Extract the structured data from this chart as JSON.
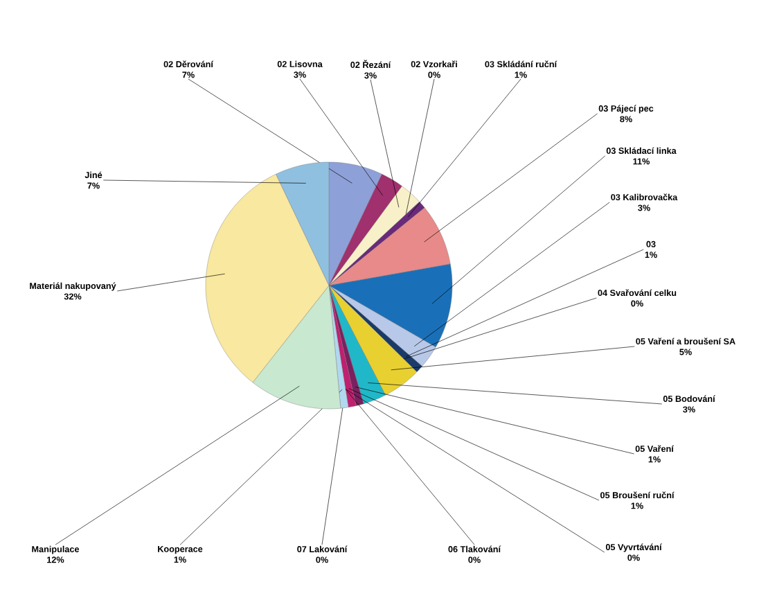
{
  "chart_data": {
    "type": "pie",
    "categories": [
      "02 Děrování",
      "02 Lisovna",
      "02 Řezání",
      "02 Vzorkaři",
      "03 Skládání ruční",
      "03 Pájecí pec",
      "03 Skládací linka",
      "03 Kalibrovačka",
      "03",
      "04 Svařování celku",
      "05 Vaření a broušení SA",
      "05 Bodování",
      "05 Vaření",
      "05 Broušení ruční",
      "05 Vyvrtávání",
      "06 Tlakování",
      "07 Lakování",
      "Kooperace",
      "Manipulace",
      "Materiál nakupovaný",
      "Jiné"
    ],
    "values": [
      7,
      3,
      3,
      0,
      1,
      8,
      11,
      3,
      1,
      0,
      5,
      3,
      1,
      1,
      0,
      0,
      0,
      1,
      12,
      32,
      7
    ],
    "value_labels": [
      "7%",
      "3%",
      "3%",
      "0%",
      "1%",
      "8%",
      "11%",
      "3%",
      "1%",
      "0%",
      "5%",
      "3%",
      "1%",
      "1%",
      "0%",
      "0%",
      "0%",
      "1%",
      "12%",
      "32%",
      "7%"
    ],
    "colors": [
      "#8ea0d8",
      "#a0306e",
      "#f8f0c8",
      "#c0e8f0",
      "#6a2a7a",
      "#e88a8a",
      "#1a70b8",
      "#b8c8e8",
      "#1a3a6a",
      "#c03080",
      "#e8d030",
      "#20b8c8",
      "#7a2060",
      "#c02070",
      "#2a6ad0",
      "#c05030",
      "#888888",
      "#b0d8f0",
      "#c8e8d0",
      "#f8e8a0",
      "#90c0e0"
    ]
  }
}
